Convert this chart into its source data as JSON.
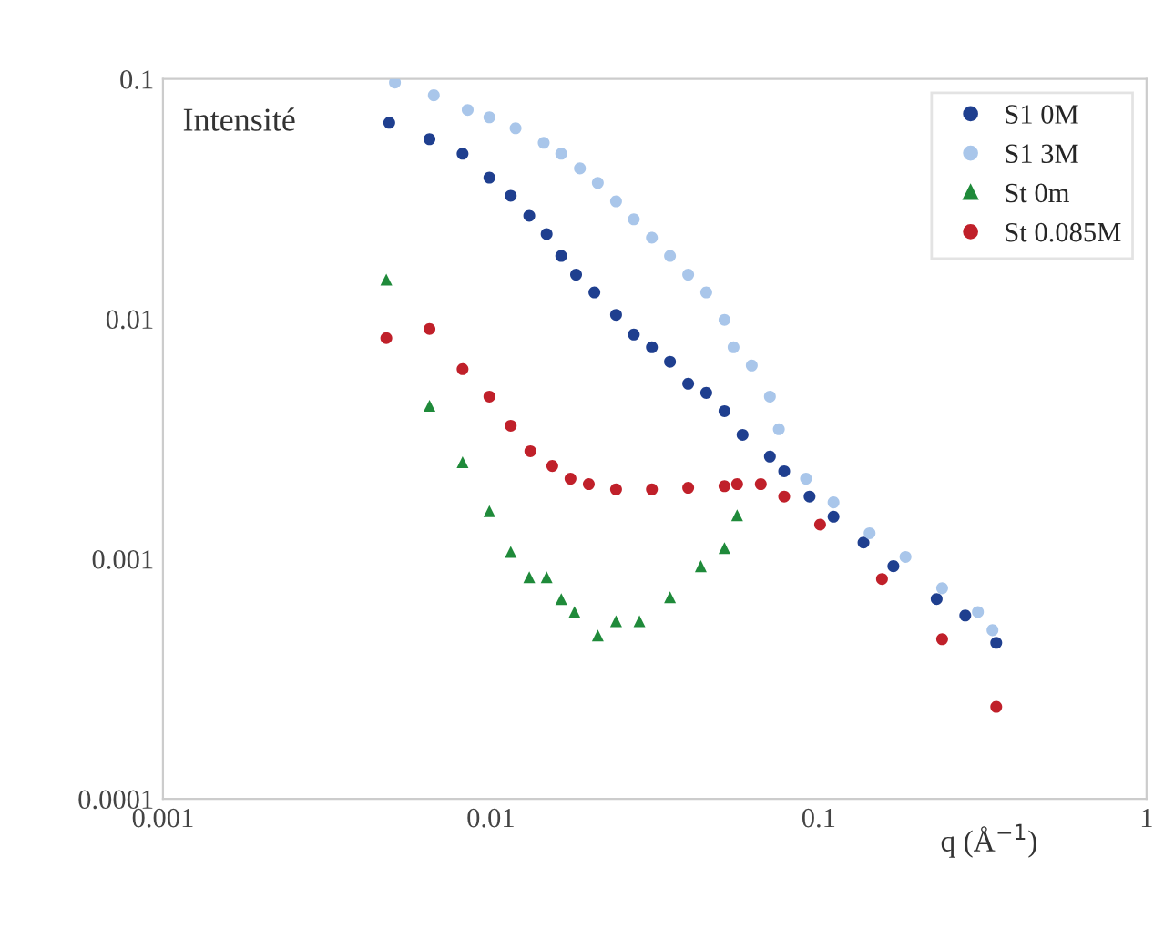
{
  "chart_data": {
    "type": "scatter",
    "log": "xy",
    "xlabel": "q (Å$^{−1}$)",
    "annotations": [
      "Intensité"
    ],
    "xlim": [
      0.001,
      1
    ],
    "ylim": [
      0.0001,
      0.1
    ],
    "xticks": [
      0.001,
      0.01,
      0.1,
      1
    ],
    "yticks": [
      0.0001,
      0.001,
      0.01,
      0.1
    ],
    "grid": false,
    "legend": "top right",
    "series": [
      {
        "name": "S1 0M",
        "color": "#1f3f8f",
        "marker": "circle",
        "x": [
          0.0049,
          0.0065,
          0.0082,
          0.0099,
          0.0115,
          0.0131,
          0.0148,
          0.0164,
          0.0182,
          0.0207,
          0.0241,
          0.0273,
          0.031,
          0.0352,
          0.04,
          0.0454,
          0.0516,
          0.0586,
          0.071,
          0.0785,
          0.0938,
          0.111,
          0.137,
          0.169,
          0.229,
          0.28,
          0.348
        ],
        "values": [
          0.0657,
          0.0561,
          0.0488,
          0.0388,
          0.0326,
          0.0269,
          0.0226,
          0.0183,
          0.0153,
          0.0129,
          0.0104,
          0.00861,
          0.00762,
          0.00663,
          0.00537,
          0.00492,
          0.00413,
          0.00329,
          0.00267,
          0.00232,
          0.00182,
          0.0015,
          0.00117,
          0.000933,
          0.000681,
          0.000581,
          0.000447
        ]
      },
      {
        "name": "S1 3M",
        "color": "#a9c6ea",
        "marker": "circle",
        "x": [
          0.0051,
          0.0067,
          0.0085,
          0.0099,
          0.0119,
          0.0145,
          0.0164,
          0.0187,
          0.0212,
          0.0241,
          0.0273,
          0.031,
          0.0352,
          0.04,
          0.0454,
          0.0516,
          0.055,
          0.0625,
          0.071,
          0.0756,
          0.0915,
          0.111,
          0.143,
          0.184,
          0.238,
          0.306,
          0.339
        ],
        "values": [
          0.0966,
          0.0855,
          0.0743,
          0.0692,
          0.0623,
          0.0542,
          0.0488,
          0.0424,
          0.0369,
          0.0309,
          0.026,
          0.0218,
          0.0183,
          0.0153,
          0.0129,
          0.00991,
          0.00762,
          0.0064,
          0.00475,
          0.00347,
          0.00216,
          0.00172,
          0.00128,
          0.00102,
          0.000755,
          0.000601,
          0.000505
        ]
      },
      {
        "name": "St 0m",
        "color": "#1f8a3a",
        "marker": "triangle",
        "x": [
          0.0048,
          0.0065,
          0.0082,
          0.0099,
          0.0115,
          0.0131,
          0.0148,
          0.0164,
          0.018,
          0.0212,
          0.0241,
          0.0284,
          0.0352,
          0.0437,
          0.0516,
          0.0564
        ],
        "values": [
          0.0146,
          0.00435,
          0.00253,
          0.00158,
          0.00107,
          0.000839,
          0.000839,
          0.000681,
          0.000601,
          0.00048,
          0.000551,
          0.000551,
          0.000692,
          0.000933,
          0.00111,
          0.00152
        ]
      },
      {
        "name": "St 0.085M",
        "color": "#c0202a",
        "marker": "circle",
        "x": [
          0.0048,
          0.0065,
          0.0082,
          0.0099,
          0.0115,
          0.0132,
          0.0154,
          0.0175,
          0.0199,
          0.0241,
          0.031,
          0.04,
          0.0516,
          0.0564,
          0.0666,
          0.0785,
          0.101,
          0.156,
          0.238,
          0.348
        ],
        "values": [
          0.00832,
          0.00908,
          0.00618,
          0.00475,
          0.00359,
          0.00281,
          0.00244,
          0.00216,
          0.00205,
          0.00195,
          0.00195,
          0.00198,
          0.00201,
          0.00205,
          0.00205,
          0.00182,
          0.00139,
          0.000825,
          0.000463,
          0.000242
        ]
      }
    ]
  }
}
